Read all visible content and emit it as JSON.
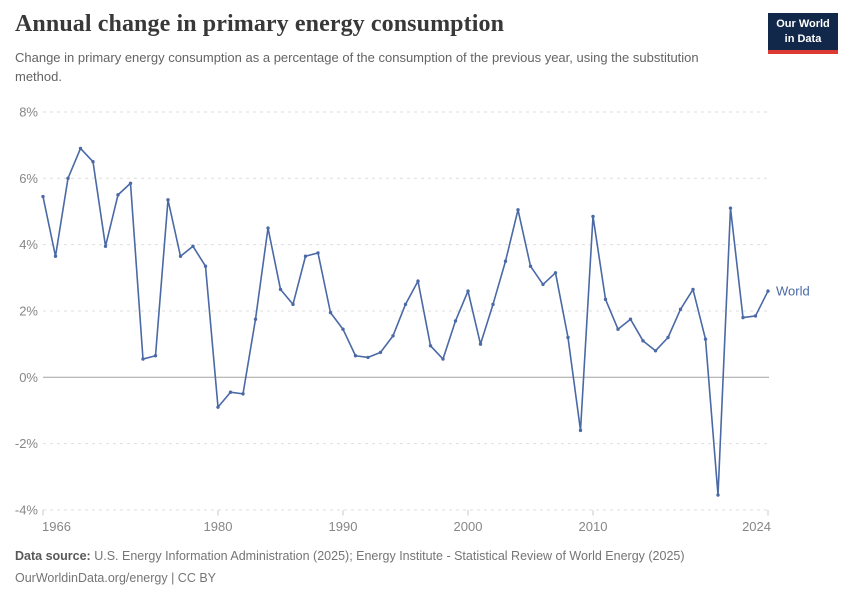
{
  "logo": {
    "line1": "Our World",
    "line2": "in Data"
  },
  "chart_data": {
    "type": "line",
    "title": "Annual change in primary energy consumption",
    "subtitle": "Change in primary energy consumption as a percentage of the consumption of the previous year, using the substitution method.",
    "xlabel": "",
    "ylabel": "",
    "xlim": [
      1966,
      2024
    ],
    "ylim": [
      -4,
      8
    ],
    "yticks": [
      8,
      6,
      4,
      2,
      0,
      -2,
      -4
    ],
    "ytick_suffix": "%",
    "xticks": [
      1966,
      1980,
      1990,
      2000,
      2010,
      2024
    ],
    "grid": "horizontal-dashed",
    "zero_line": true,
    "legend_position": "right-of-last-point",
    "series": [
      {
        "name": "World",
        "color": "#4A69A5",
        "years": [
          1966,
          1967,
          1968,
          1969,
          1970,
          1971,
          1972,
          1973,
          1974,
          1975,
          1976,
          1977,
          1978,
          1979,
          1980,
          1981,
          1982,
          1983,
          1984,
          1985,
          1986,
          1987,
          1988,
          1989,
          1990,
          1991,
          1992,
          1993,
          1994,
          1995,
          1996,
          1997,
          1998,
          1999,
          2000,
          2001,
          2002,
          2003,
          2004,
          2005,
          2006,
          2007,
          2008,
          2009,
          2010,
          2011,
          2012,
          2013,
          2014,
          2015,
          2016,
          2017,
          2018,
          2019,
          2020,
          2021,
          2022,
          2023,
          2024
        ],
        "values": [
          5.45,
          3.65,
          6.0,
          6.9,
          6.5,
          3.95,
          5.5,
          5.85,
          0.55,
          0.65,
          5.35,
          3.65,
          3.95,
          3.35,
          -0.9,
          -0.45,
          -0.5,
          1.75,
          4.5,
          2.65,
          2.2,
          3.65,
          3.75,
          1.95,
          1.45,
          0.65,
          0.6,
          0.75,
          1.25,
          2.2,
          2.9,
          0.95,
          0.55,
          1.7,
          2.6,
          1.0,
          2.2,
          3.5,
          5.05,
          3.35,
          2.8,
          3.15,
          1.2,
          -1.6,
          4.85,
          2.35,
          1.45,
          1.75,
          1.1,
          0.8,
          1.2,
          2.05,
          2.65,
          1.15,
          -3.55,
          5.1,
          1.8,
          1.85,
          2.6
        ]
      }
    ]
  },
  "footer": {
    "source_label": "Data source:",
    "source_text": " U.S. Energy Information Administration (2025); Energy Institute - Statistical Review of World Energy (2025)",
    "license_line": "OurWorldinData.org/energy | CC BY"
  },
  "colors": {
    "line": "#4A69A5",
    "grid": "#DEDEDE",
    "zero_line": "#A3A3A3",
    "axis_text": "#878787",
    "title_text": "#383838",
    "subtitle_text": "#646464",
    "footer_text": "#757575",
    "logo_bg": "#12284A",
    "logo_stripe": "#DC3A32"
  }
}
